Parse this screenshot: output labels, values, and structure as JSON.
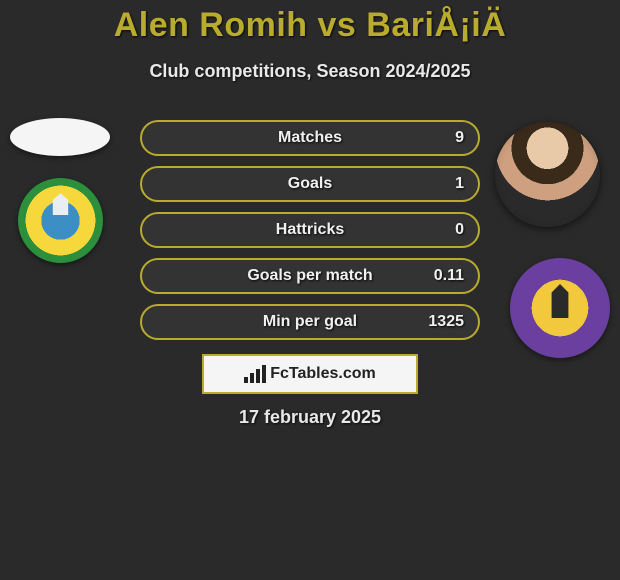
{
  "colors": {
    "background": "#2a2a2a",
    "accent": "#b8ab2e",
    "text_light": "#e8e8e8",
    "text_white": "#f0f0f0",
    "brand_box_bg": "#f5f5f5",
    "brand_text": "#222222"
  },
  "typography": {
    "title_fontsize": 34,
    "subtitle_fontsize": 18,
    "stat_fontsize": 16,
    "date_fontsize": 18,
    "brand_fontsize": 16,
    "title_weight": 900,
    "body_weight": 600
  },
  "header": {
    "title": "Alen Romih vs BariÅ¡iÄ",
    "subtitle": "Club competitions, Season 2024/2025"
  },
  "stats": {
    "pill_border_radius": 18,
    "pill_height": 36,
    "pill_gap": 10,
    "rows": [
      {
        "label": "Matches",
        "value": "9"
      },
      {
        "label": "Goals",
        "value": "1"
      },
      {
        "label": "Hattricks",
        "value": "0"
      },
      {
        "label": "Goals per match",
        "value": "0.11"
      },
      {
        "label": "Min per goal",
        "value": "1325"
      }
    ]
  },
  "players": {
    "left": {
      "name": "Alen Romih",
      "avatar_kind": "blank"
    },
    "right": {
      "name": "BariÅ¡iÄ",
      "avatar_kind": "photo"
    }
  },
  "clubs": {
    "left": {
      "name": "NK CMC Publikum",
      "badge_colors": [
        "#3b8fc4",
        "#f7d83c",
        "#2c8f3c"
      ]
    },
    "right": {
      "name": "NK Maribor",
      "badge_colors": [
        "#f2c83c",
        "#6a3fa0"
      ]
    }
  },
  "brand": {
    "icon": "bar-chart-icon",
    "text": "FcTables.com"
  },
  "footer": {
    "date": "17 february 2025"
  }
}
